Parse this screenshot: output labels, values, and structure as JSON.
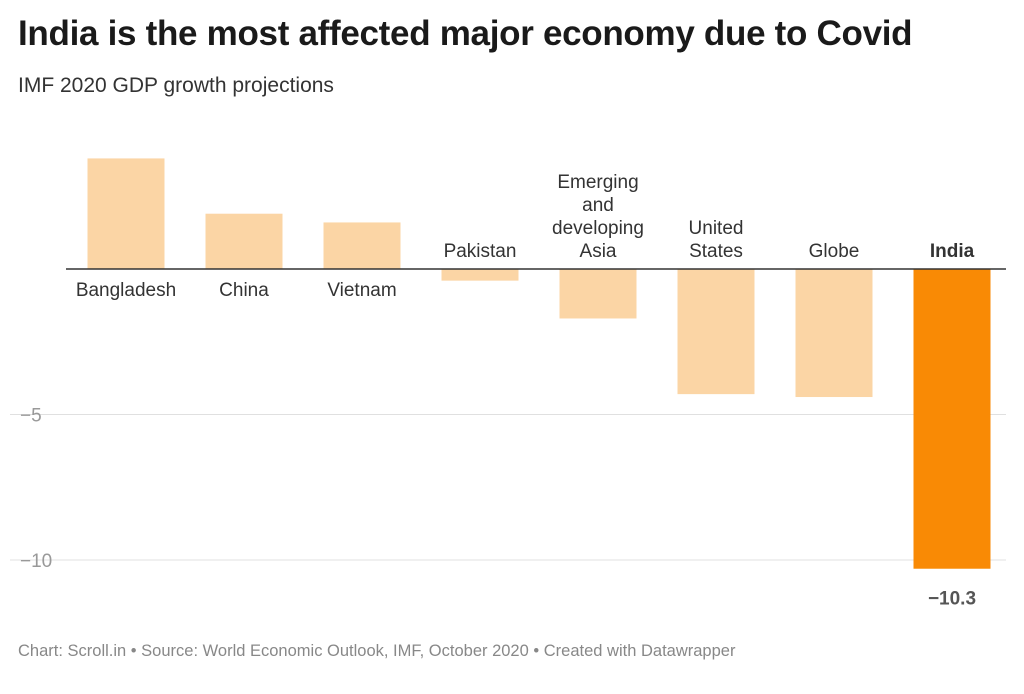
{
  "title": "India is the most affected major economy due to Covid",
  "subtitle": "IMF 2020 GDP growth projections",
  "footer": {
    "chart_credit": "Chart: Scroll.in",
    "source": "Source: World Economic Outlook, IMF, October 2020",
    "created_with": "Created with Datawrapper"
  },
  "colors": {
    "bar": "#fbd5a5",
    "highlight": "#f98a05",
    "grid": "#e0e0e0",
    "axis_text": "#999999",
    "label_text": "#333333"
  },
  "chart_data": {
    "type": "bar",
    "categories": [
      "Bangladesh",
      "China",
      "Vietnam",
      "Pakistan",
      "Emerging and developing Asia",
      "United States",
      "Globe",
      "India"
    ],
    "category_lines": [
      [
        "Bangladesh"
      ],
      [
        "China"
      ],
      [
        "Vietnam"
      ],
      [
        "Pakistan"
      ],
      [
        "Emerging",
        "and",
        "developing",
        "Asia"
      ],
      [
        "United",
        "States"
      ],
      [
        "Globe"
      ],
      [
        "India"
      ]
    ],
    "values": [
      3.8,
      1.9,
      1.6,
      -0.4,
      -1.7,
      -4.3,
      -4.4,
      -10.3
    ],
    "highlight": "India",
    "value_labels": {
      "India": "−10.3"
    },
    "yticks": [
      {
        "value": -5,
        "label": "−5"
      },
      {
        "value": -10,
        "label": "−10"
      }
    ],
    "ylim": [
      -10.3,
      3.8
    ],
    "grid": true
  }
}
